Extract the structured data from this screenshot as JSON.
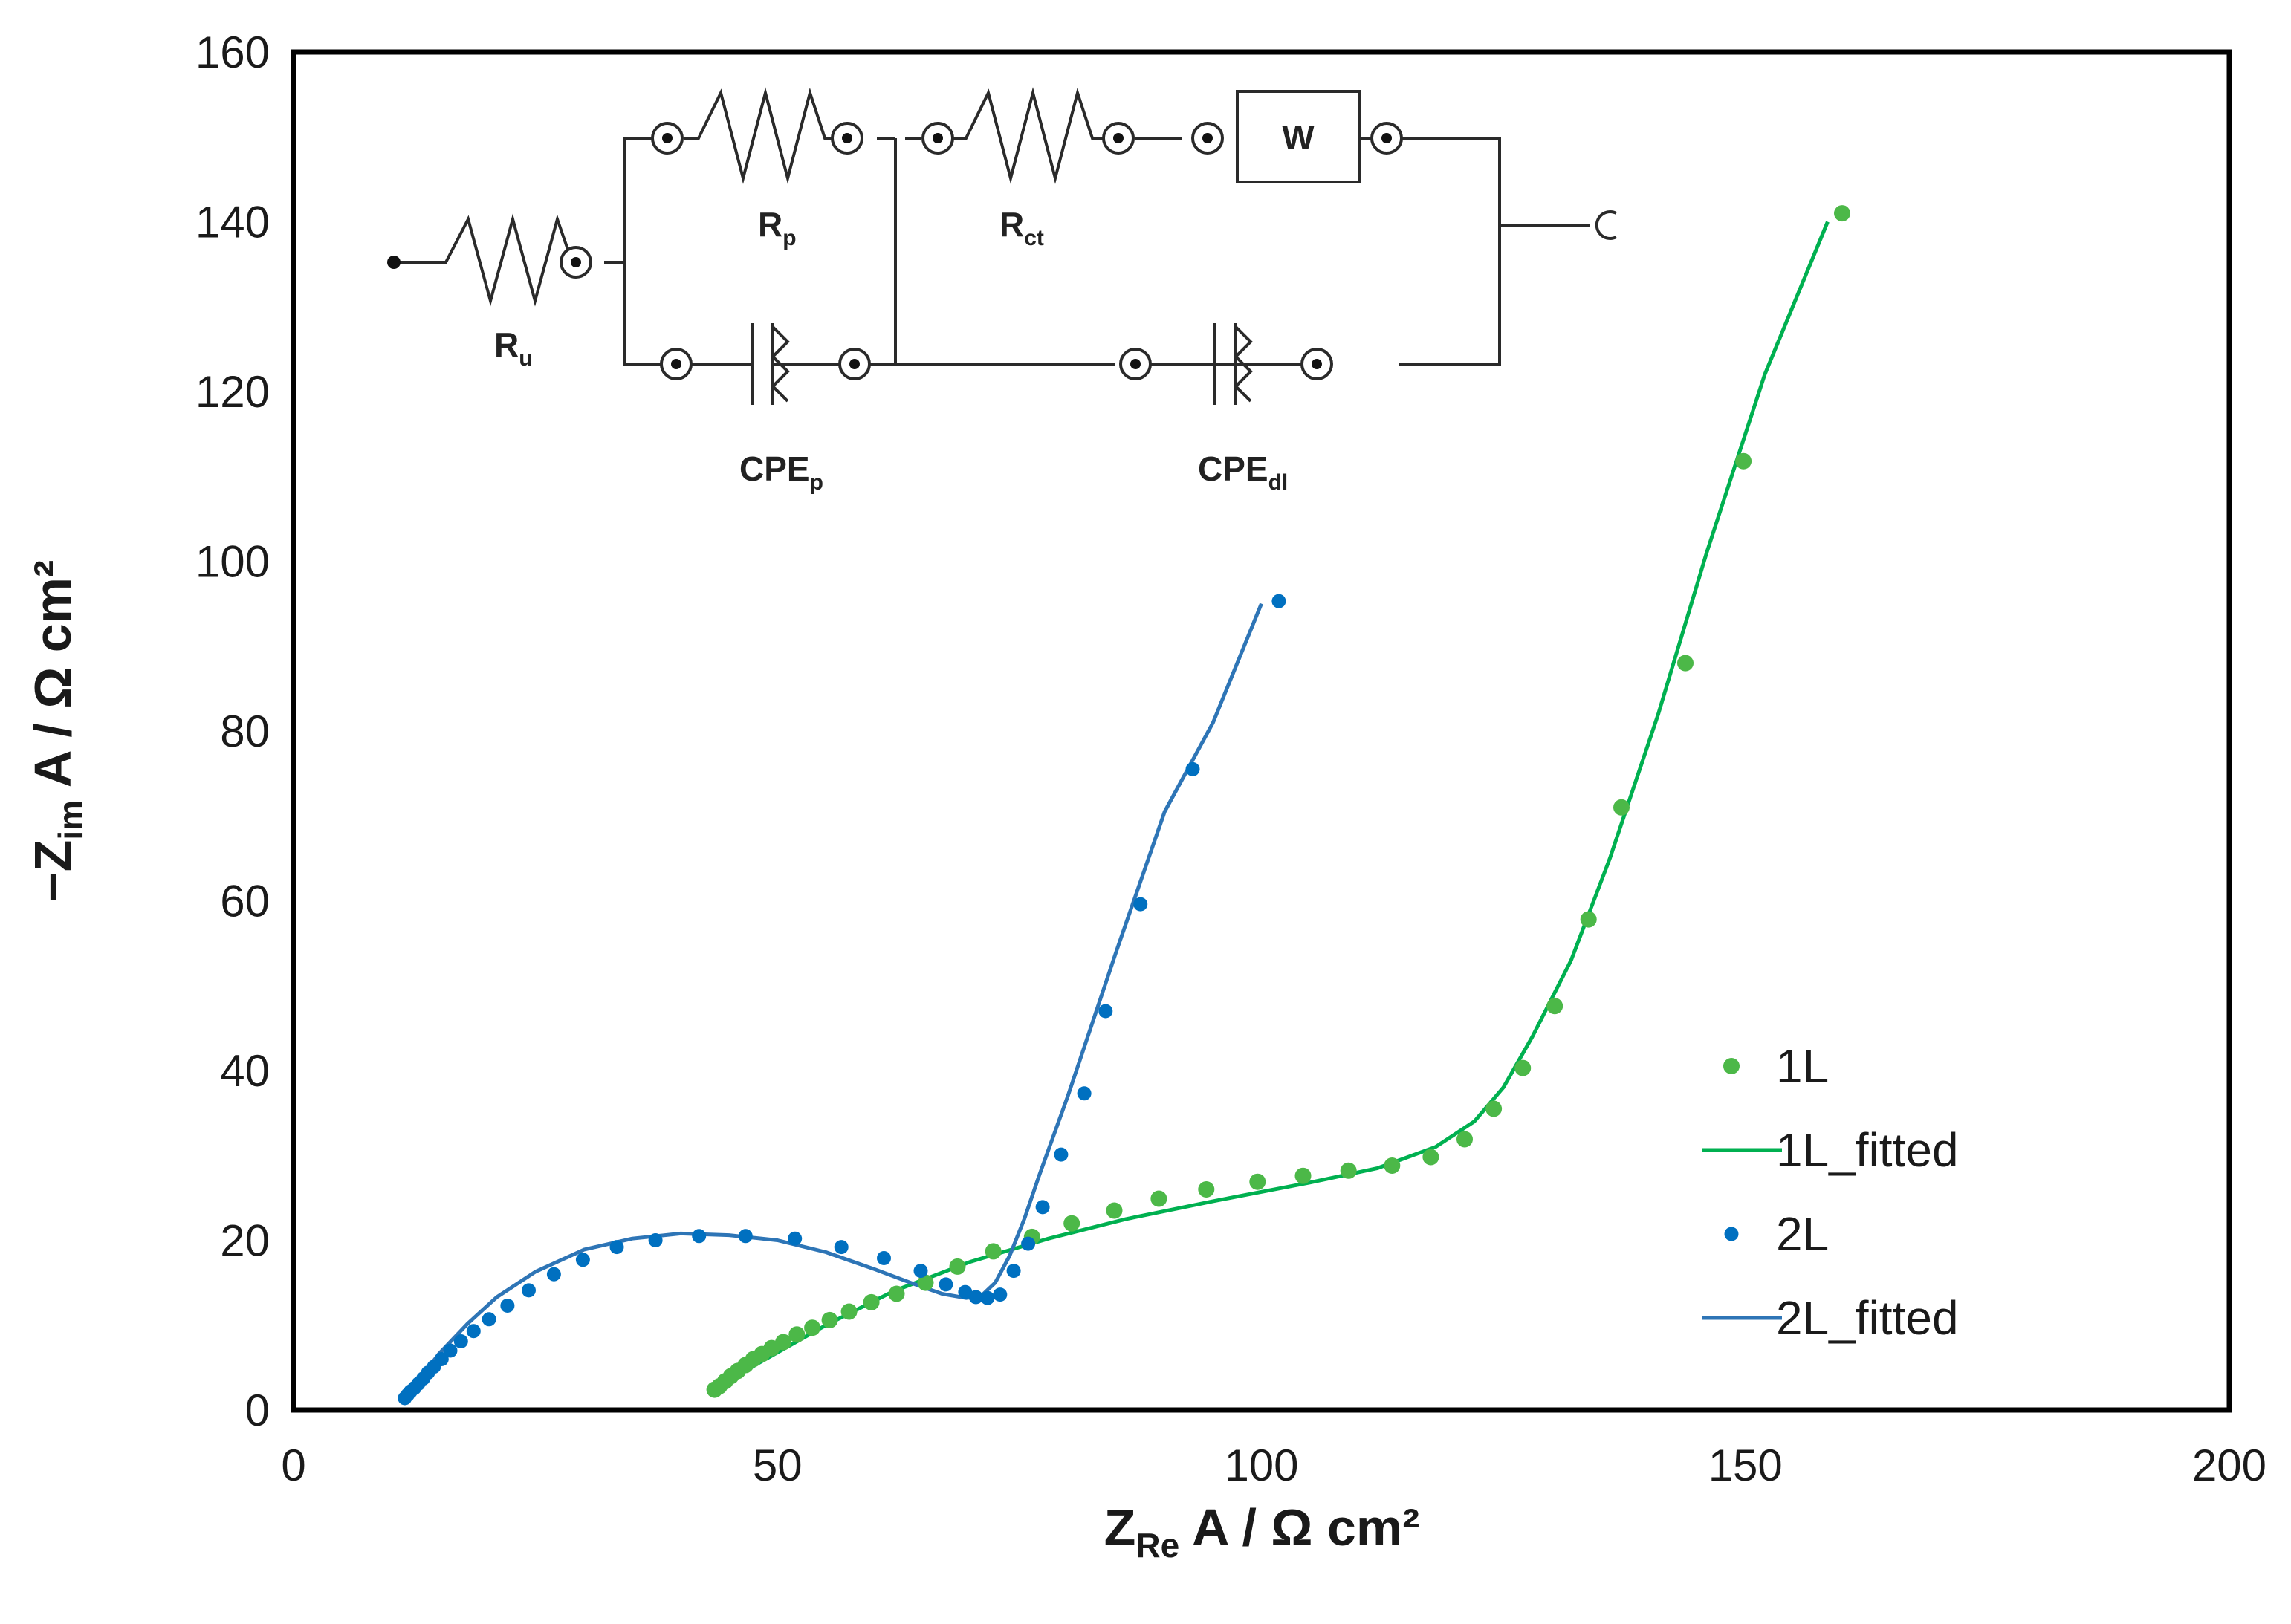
{
  "chart_data": {
    "type": "scatter",
    "title": "",
    "xlabel": {
      "main": "Z",
      "sub": "Re",
      "rest": " A / Ω cm²"
    },
    "ylabel": {
      "main": "−Z",
      "sub": "im",
      "rest": " A / Ω cm²"
    },
    "xlim": [
      0,
      200
    ],
    "ylim": [
      0,
      160
    ],
    "xticks": [
      0,
      50,
      100,
      150,
      200
    ],
    "yticks": [
      0,
      20,
      40,
      60,
      80,
      100,
      120,
      140,
      160
    ],
    "grid": false,
    "legend_position": "bottom-right",
    "series": [
      {
        "name": "1L",
        "kind": "points",
        "color": "#4CB848",
        "x": [
          43.5,
          44,
          44.6,
          45.2,
          45.9,
          46.7,
          47.5,
          48.4,
          49.4,
          50.6,
          52,
          53.6,
          55.4,
          57.4,
          59.7,
          62.3,
          65.3,
          68.6,
          72.3,
          76.3,
          80.4,
          84.8,
          89.4,
          94.3,
          99.6,
          104.3,
          109,
          113.5,
          117.5,
          121,
          124,
          127,
          130.3,
          133.8,
          137.2,
          143.8,
          149.8,
          160
        ],
        "y": [
          2.4,
          2.8,
          3.4,
          4.0,
          4.6,
          5.3,
          6.0,
          6.6,
          7.3,
          8.0,
          8.9,
          9.7,
          10.6,
          11.6,
          12.7,
          13.7,
          15.0,
          16.9,
          18.7,
          20.4,
          22.0,
          23.5,
          24.9,
          26.0,
          26.9,
          27.6,
          28.2,
          28.8,
          29.8,
          31.9,
          35.5,
          40.3,
          47.6,
          57.8,
          71.0,
          88.0,
          111.8,
          141.0
        ]
      },
      {
        "name": "1L_fitted",
        "kind": "line",
        "color": "#00B050",
        "x": [
          43.5,
          48,
          55,
          62,
          70,
          78,
          86,
          95,
          105,
          112,
          118,
          122,
          125,
          128,
          132,
          136,
          141,
          146,
          152,
          158.5
        ],
        "y": [
          2.4,
          5.5,
          10,
          14,
          17.5,
          20.2,
          22.5,
          24.6,
          26.8,
          28.5,
          31,
          34,
          38,
          44,
          53,
          65,
          82,
          101,
          122,
          140
        ]
      },
      {
        "name": "2L",
        "kind": "points",
        "color": "#0070C0",
        "x": [
          11.5,
          11.8,
          12.1,
          12.5,
          12.9,
          13.4,
          13.9,
          14.5,
          15.3,
          16.2,
          17.3,
          18.6,
          20.2,
          22.1,
          24.3,
          26.9,
          29.9,
          33.4,
          37.4,
          41.9,
          46.7,
          51.8,
          56.6,
          61,
          64.8,
          67.4,
          69.4,
          70.5,
          71.7,
          73,
          74.4,
          75.9,
          77.4,
          79.3,
          81.7,
          83.9,
          87.5,
          92.9,
          101.8
        ],
        "y": [
          1.4,
          1.8,
          2.2,
          2.6,
          3.1,
          3.7,
          4.4,
          5.1,
          6.0,
          7.0,
          8.1,
          9.3,
          10.7,
          12.3,
          14.1,
          16.0,
          17.7,
          19.2,
          20.0,
          20.5,
          20.5,
          20.2,
          19.2,
          17.9,
          16.4,
          14.8,
          13.9,
          13.3,
          13.2,
          13.6,
          16.4,
          19.6,
          23.9,
          30.1,
          37.3,
          47.0,
          59.6,
          75.5,
          95.3
        ]
      },
      {
        "name": "2L_fitted",
        "kind": "line",
        "color": "#2E75B6",
        "x": [
          11.5,
          13,
          15,
          18,
          21,
          25,
          30,
          35,
          40,
          45,
          50,
          55,
          60,
          64,
          67,
          69.5,
          71,
          72.5,
          74,
          75.5,
          77,
          80,
          85,
          90,
          95,
          100
        ],
        "y": [
          1.4,
          3.6,
          6.6,
          10.2,
          13.3,
          16.3,
          18.9,
          20.2,
          20.8,
          20.6,
          20.0,
          18.6,
          16.6,
          14.9,
          13.7,
          13.2,
          13.4,
          15,
          18.2,
          22.5,
          27.5,
          37,
          54,
          70.5,
          81,
          95
        ]
      }
    ]
  },
  "circuit": {
    "labels": {
      "Ru": {
        "main": "R",
        "sub": "u"
      },
      "Rp": {
        "main": "R",
        "sub": "p"
      },
      "Rct": {
        "main": "R",
        "sub": "ct"
      },
      "W": {
        "main": "W"
      },
      "CPEp": {
        "main": "CPE",
        "sub": "p"
      },
      "CPEdl": {
        "main": "CPE",
        "sub": "dl"
      }
    }
  }
}
